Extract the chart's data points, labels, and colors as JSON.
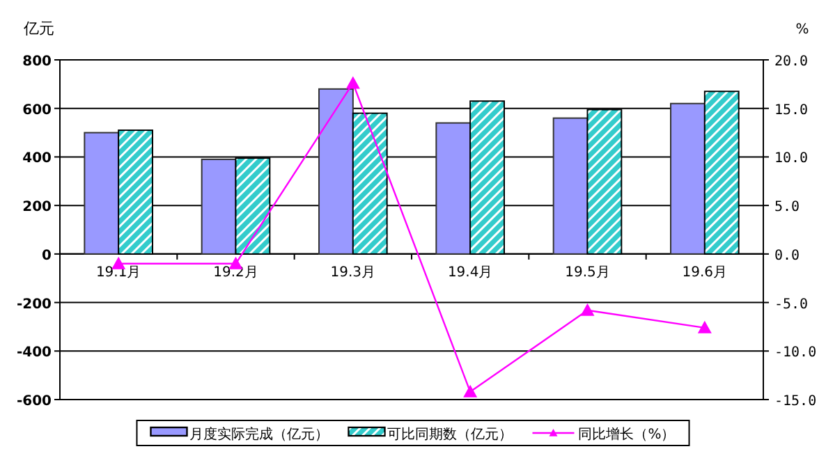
{
  "chart_data": {
    "type": "bar",
    "ylabel": "亿元",
    "y2label": "%",
    "categories": [
      "19.1月",
      "19.2月",
      "19.3月",
      "19.4月",
      "19.5月",
      "19.6月"
    ],
    "series": [
      {
        "name": "月度实际完成（亿元）",
        "color": "#9999ff",
        "values": [
          500,
          390,
          680,
          540,
          560,
          620
        ]
      },
      {
        "name": "可比同期数（亿元）",
        "color": "#33cccc",
        "values": [
          510,
          395,
          580,
          630,
          595,
          670
        ]
      },
      {
        "name": "同比增长（%）",
        "type": "line",
        "axis": "y2",
        "color": "#ff00ff",
        "marker": "triangle",
        "values": [
          -1.0,
          -1.0,
          17.6,
          -14.2,
          -5.8,
          -7.6
        ]
      }
    ],
    "ylim": [
      -600,
      800
    ],
    "yticks": [
      -600,
      -400,
      -200,
      0,
      200,
      400,
      600,
      800
    ],
    "y2lim": [
      -15,
      20
    ],
    "y2ticks": [
      {
        "value": -15,
        "label": "-15.0"
      },
      {
        "value": -10,
        "label": "-10.0"
      },
      {
        "value": -5,
        "label": "-5.0"
      },
      {
        "value": 0,
        "label": "0.0"
      },
      {
        "value": 5,
        "label": "5.0"
      },
      {
        "value": 10,
        "label": "10.0"
      },
      {
        "value": 15,
        "label": "15.0"
      },
      {
        "value": 20,
        "label": "20.0"
      }
    ],
    "grid": "y",
    "legend": "bottom"
  }
}
